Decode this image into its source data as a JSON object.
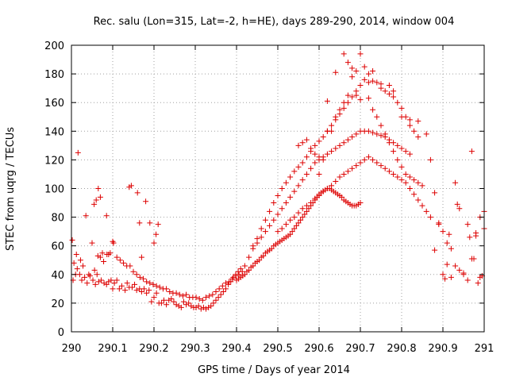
{
  "chart_data": {
    "type": "scatter",
    "title": "Rec. salu (Lon=315, Lat=-2, h=HE), days 289-290, 2014, window 004",
    "xlabel": "GPS time / Days of year 2014",
    "ylabel": "STEC from uqrg / TECUs",
    "xlim": [
      290,
      291
    ],
    "ylim": [
      0,
      200
    ],
    "x_ticks": [
      290,
      290.1,
      290.2,
      290.3,
      290.4,
      290.5,
      290.6,
      290.7,
      290.8,
      290.9,
      291
    ],
    "x_tick_labels": [
      "290",
      "290.1",
      "290.2",
      "290.3",
      "290.4",
      "290.5",
      "290.6",
      "290.7",
      "290.8",
      "290.9",
      "291"
    ],
    "y_ticks": [
      0,
      20,
      40,
      60,
      80,
      100,
      120,
      140,
      160,
      180,
      200
    ],
    "y_tick_labels": [
      "0",
      "20",
      "40",
      "60",
      "80",
      "100",
      "120",
      "140",
      "160",
      "180",
      "200"
    ],
    "grid": true,
    "marker": "plus",
    "color": "#dd0000",
    "series": [
      {
        "x": [
          290.004,
          290.006,
          290.012,
          290.014,
          290.02,
          290.025,
          290.032,
          290.038,
          290.045,
          290.052,
          290.058,
          290.062,
          290.066,
          290.072,
          290.079,
          290.085,
          290.09,
          290.096,
          290.1,
          290.104,
          290.11,
          290.116,
          290.122,
          290.13,
          290.135,
          290.14,
          290.147,
          290.153,
          290.158,
          290.165,
          290.17,
          290.176,
          290.182,
          290.188,
          290.194,
          290.2,
          290.206,
          290.212,
          290.218,
          290.224,
          290.23,
          290.236,
          290.242,
          290.248,
          290.254,
          290.26,
          290.266,
          290.272,
          290.278,
          290.284,
          290.29,
          290.296,
          290.302,
          290.308,
          290.314,
          290.32,
          290.326,
          290.332,
          290.338,
          290.344,
          290.35,
          290.356,
          290.362,
          290.368,
          290.374,
          290.38,
          290.386,
          290.392,
          290.398,
          290.404,
          290.41
        ],
        "y": [
          36,
          48,
          54,
          44,
          40,
          36,
          38,
          34,
          39,
          36,
          33,
          40,
          35,
          36,
          34,
          33,
          35,
          36,
          30,
          34,
          36,
          30,
          32,
          29,
          34,
          31,
          31,
          33,
          29,
          30,
          28,
          30,
          27,
          29,
          21,
          24,
          27,
          20,
          20,
          22,
          19,
          22,
          23,
          21,
          19,
          18,
          17,
          21,
          19,
          20,
          18,
          17,
          17,
          18,
          16,
          17,
          16,
          17,
          18,
          20,
          22,
          24,
          26,
          28,
          30,
          33,
          35,
          38,
          40,
          42,
          44
        ]
      },
      {
        "x": [
          290.002,
          290.01,
          290.016,
          290.022,
          290.028,
          290.035,
          290.042,
          290.05,
          290.056,
          290.064,
          290.07,
          290.078,
          290.086,
          290.094,
          290.102,
          290.11,
          290.118,
          290.126,
          290.134,
          290.142,
          290.15,
          290.158,
          290.166,
          290.174,
          290.182,
          290.19,
          290.198,
          290.206,
          290.214,
          290.222,
          290.23,
          290.238,
          290.246,
          290.254,
          290.262,
          290.27,
          290.278,
          290.286,
          290.294,
          290.302,
          290.31,
          290.318,
          290.326,
          290.334,
          290.342,
          290.35,
          290.358,
          290.366,
          290.374,
          290.382,
          290.39,
          290.398,
          290.406,
          290.414
        ],
        "y": [
          64,
          40,
          125,
          50,
          46,
          81,
          40,
          62,
          43,
          53,
          52,
          49,
          54,
          55,
          62,
          52,
          50,
          48,
          46,
          46,
          42,
          40,
          38,
          37,
          35,
          34,
          33,
          32,
          31,
          30,
          30,
          28,
          27,
          27,
          26,
          25,
          26,
          24,
          24,
          24,
          23,
          22,
          24,
          25,
          26,
          28,
          30,
          32,
          34,
          35,
          37,
          39,
          40,
          42
        ]
      },
      {
        "x": [
          290.055,
          290.06,
          290.065,
          290.07,
          290.075,
          290.085,
          290.09,
          290.1,
          290.14,
          290.145,
          290.16,
          290.165,
          290.17,
          290.18,
          290.19,
          290.2,
          290.205,
          290.21
        ],
        "y": [
          89,
          92,
          100,
          94,
          55,
          81,
          54,
          63,
          101,
          102,
          97,
          76,
          52,
          91,
          76,
          62,
          68,
          75
        ]
      },
      {
        "x": [
          290.4,
          290.405,
          290.41,
          290.415,
          290.42,
          290.425,
          290.43,
          290.435,
          290.44,
          290.445,
          290.45,
          290.455,
          290.46,
          290.465,
          290.47,
          290.475,
          290.48,
          290.485,
          290.49,
          290.495,
          290.5,
          290.505,
          290.51,
          290.515,
          290.52,
          290.525,
          290.53,
          290.535,
          290.54,
          290.545,
          290.55,
          290.555,
          290.56,
          290.565,
          290.57,
          290.575,
          290.58,
          290.585,
          290.59,
          290.595,
          290.6,
          290.605,
          290.61,
          290.615,
          290.62,
          290.625,
          290.63,
          290.635,
          290.64,
          290.645,
          290.65,
          290.655,
          290.66,
          290.665,
          290.67,
          290.675,
          290.68,
          290.685,
          290.69,
          290.695,
          290.7
        ],
        "y": [
          36,
          37,
          38,
          39,
          40,
          42,
          43,
          45,
          46,
          48,
          49,
          50,
          52,
          53,
          55,
          56,
          57,
          58,
          60,
          61,
          62,
          63,
          64,
          65,
          66,
          67,
          68,
          70,
          72,
          74,
          76,
          78,
          80,
          82,
          84,
          86,
          88,
          90,
          92,
          94,
          96,
          97,
          98,
          99,
          100,
          100,
          99,
          98,
          97,
          96,
          95,
          94,
          92,
          91,
          90,
          89,
          88,
          88,
          88,
          89,
          90
        ]
      },
      {
        "x": [
          290.42,
          290.43,
          290.44,
          290.45,
          290.46,
          290.47,
          290.48,
          290.49,
          290.5,
          290.51,
          290.52,
          290.53,
          290.54,
          290.55,
          290.56,
          290.57,
          290.58,
          290.59,
          290.6,
          290.61,
          290.62,
          290.63,
          290.64,
          290.65,
          290.66,
          290.67,
          290.68,
          290.69,
          290.7,
          290.71,
          290.72,
          290.73,
          290.74,
          290.75,
          290.76,
          290.77,
          290.78,
          290.79,
          290.8,
          290.81,
          290.82
        ],
        "y": [
          46,
          52,
          58,
          62,
          66,
          70,
          74,
          78,
          82,
          86,
          90,
          94,
          98,
          102,
          106,
          110,
          114,
          118,
          120,
          122,
          124,
          126,
          128,
          130,
          132,
          134,
          136,
          138,
          140,
          140,
          140,
          139,
          138,
          137,
          136,
          134,
          132,
          130,
          128,
          126,
          124
        ]
      },
      {
        "x": [
          290.44,
          290.45,
          290.46,
          290.47,
          290.48,
          290.49,
          290.5,
          290.51,
          290.52,
          290.53,
          290.54,
          290.55,
          290.56,
          290.57,
          290.58,
          290.59,
          290.6,
          290.61,
          290.62,
          290.63,
          290.64,
          290.65,
          290.66,
          290.67,
          290.68,
          290.69,
          290.7,
          290.71,
          290.72,
          290.73,
          290.74,
          290.75,
          290.76,
          290.77,
          290.78,
          290.79,
          290.8,
          290.81,
          290.82,
          290.83,
          290.84
        ],
        "y": [
          60,
          65,
          72,
          78,
          84,
          90,
          95,
          100,
          104,
          108,
          112,
          115,
          118,
          122,
          126,
          130,
          133,
          136,
          140,
          144,
          148,
          152,
          156,
          160,
          164,
          168,
          172,
          176,
          180,
          182,
          174,
          170,
          168,
          166,
          164,
          160,
          156,
          150,
          144,
          140,
          136
        ]
      },
      {
        "x": [
          290.5,
          290.51,
          290.52,
          290.53,
          290.54,
          290.55,
          290.56,
          290.57,
          290.58,
          290.59,
          290.6,
          290.61,
          290.62,
          290.63,
          290.64,
          290.65,
          290.66,
          290.67,
          290.68,
          290.69,
          290.7,
          290.71,
          290.72,
          290.73,
          290.74,
          290.75,
          290.76,
          290.77,
          290.78,
          290.79,
          290.8,
          290.81,
          290.82,
          290.83,
          290.84,
          290.85,
          290.86,
          290.87
        ],
        "y": [
          70,
          72,
          75,
          78,
          80,
          83,
          86,
          88,
          90,
          93,
          95,
          98,
          100,
          102,
          105,
          108,
          110,
          112,
          114,
          116,
          118,
          120,
          122,
          120,
          118,
          116,
          114,
          112,
          110,
          108,
          106,
          104,
          100,
          96,
          92,
          88,
          84,
          80
        ]
      },
      {
        "x": [
          290.55,
          290.56,
          290.57,
          290.58,
          290.59,
          290.6,
          290.61,
          290.62,
          290.63,
          290.64,
          290.65,
          290.66,
          290.67,
          290.68,
          290.69,
          290.7,
          290.71,
          290.72,
          290.73,
          290.74,
          290.75,
          290.76,
          290.77,
          290.78,
          290.79,
          290.8,
          290.81,
          290.82,
          290.83,
          290.84,
          290.85
        ],
        "y": [
          130,
          132,
          134,
          128,
          124,
          110,
          120,
          161,
          140,
          150,
          155,
          160,
          165,
          178,
          182,
          194,
          185,
          163,
          155,
          150,
          144,
          138,
          132,
          126,
          120,
          115,
          110,
          108,
          106,
          104,
          102
        ]
      },
      {
        "x": [
          290.6,
          290.62,
          290.64,
          290.66,
          290.67,
          290.68,
          290.69,
          290.7,
          290.72,
          290.73,
          290.75,
          290.77,
          290.78,
          290.8,
          290.82,
          290.84,
          290.86,
          290.87,
          290.88,
          290.89,
          290.9,
          290.91,
          290.92,
          290.93,
          290.94,
          290.95,
          290.96,
          290.97,
          290.98,
          290.99,
          291.0
        ],
        "y": [
          122,
          140,
          181,
          194,
          188,
          184,
          165,
          162,
          174,
          175,
          173,
          172,
          168,
          150,
          148,
          147,
          138,
          120,
          97,
          76,
          70,
          62,
          58,
          46,
          43,
          40,
          36,
          51,
          67,
          80,
          84
        ]
      },
      {
        "x": [
          290.88,
          290.89,
          290.9,
          290.905,
          290.91,
          290.915,
          290.92,
          290.93,
          290.935,
          290.94,
          290.95,
          290.96,
          290.965,
          290.97,
          290.975,
          290.98,
          290.985,
          290.99,
          290.995,
          291.0
        ],
        "y": [
          57,
          75,
          40,
          37,
          47,
          68,
          38,
          104,
          89,
          86,
          41,
          75,
          66,
          126,
          51,
          69,
          34,
          38,
          39,
          72
        ]
      }
    ]
  }
}
